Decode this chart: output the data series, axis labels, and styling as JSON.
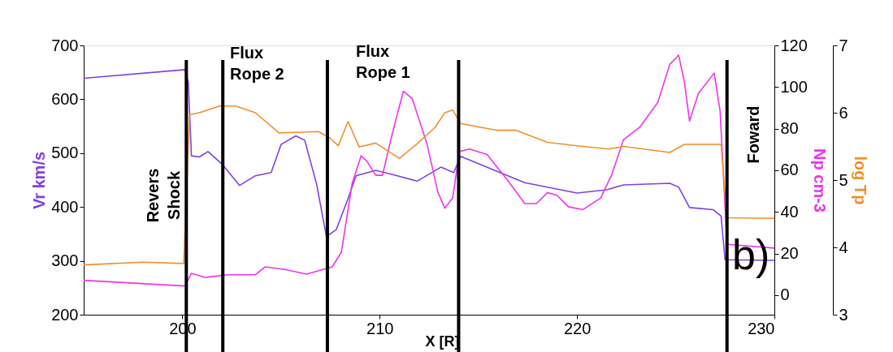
{
  "chart_data": {
    "type": "line",
    "xlabel": "X [R]",
    "ylabel": "Vr km/s",
    "y2label": "Np cm-3",
    "y3label": "log Tp",
    "xlim": [
      195,
      230
    ],
    "xticks": [
      200,
      210,
      220,
      230
    ],
    "ylim": [
      200,
      700
    ],
    "yticks": [
      200,
      300,
      400,
      500,
      600,
      700
    ],
    "y2lim": [
      -9.4,
      120
    ],
    "y2ticks": [
      0,
      20,
      40,
      60,
      80,
      100,
      120
    ],
    "y3lim": [
      3,
      7
    ],
    "y3ticks": [
      3,
      4,
      5,
      6,
      7
    ],
    "grid": false,
    "line_style": "solid",
    "marker": "none",
    "series": [
      {
        "axis": "y",
        "color": "#7f3fe6",
        "x": [
          195,
          200.14,
          200.3,
          200.46,
          200.86,
          201.3,
          202.0,
          202.9,
          203.7,
          204.5,
          205.0,
          205.75,
          206.2,
          206.8,
          207.3,
          207.8,
          208.35,
          208.8,
          209.8,
          210.9,
          211.9,
          213.1,
          213.75,
          214.1,
          215.9,
          217.35,
          220,
          221.5,
          222.35,
          224.7,
          225.15,
          225.7,
          226.9,
          227.3,
          227.5,
          230
        ],
        "values": [
          639,
          655,
          632,
          495,
          493,
          503,
          480,
          440,
          458,
          464,
          516,
          532,
          524,
          443,
          345,
          358,
          411,
          458,
          468,
          458,
          448,
          474,
          464,
          494,
          467,
          445,
          426,
          432,
          441,
          444,
          437,
          399,
          395,
          383,
          302,
          301
        ]
      },
      {
        "axis": "y2",
        "color": "#ee33ee",
        "x": [
          195,
          200.14,
          200.46,
          201.15,
          202.3,
          203.7,
          204.2,
          205.2,
          206.3,
          207.6,
          208.06,
          208.6,
          209.06,
          209.35,
          209.8,
          210.14,
          210.65,
          211.2,
          211.65,
          212.4,
          212.95,
          213.3,
          213.7,
          214.04,
          214.56,
          215.44,
          216.5,
          217.35,
          217.94,
          218.5,
          218.97,
          219.56,
          220.3,
          221.2,
          221.76,
          222.35,
          223.2,
          224.1,
          224.7,
          225.15,
          225.44,
          225.7,
          226.15,
          226.95,
          227.25,
          227.6,
          230
        ],
        "values": [
          7.1,
          4.4,
          10.5,
          8.5,
          9.8,
          9.8,
          13.6,
          12.3,
          10.1,
          13.6,
          20.7,
          53.5,
          67,
          64.4,
          57.6,
          57.6,
          78,
          98,
          94.4,
          72.6,
          49.4,
          41.8,
          46.7,
          69,
          70.2,
          67.6,
          55,
          44,
          44,
          49.2,
          48.1,
          42.5,
          41.1,
          46.7,
          57.9,
          74.6,
          80.9,
          92.7,
          110.9,
          115.3,
          102.5,
          83.7,
          96.9,
          106.7,
          88.6,
          24.4,
          22.6
        ]
      },
      {
        "axis": "y3",
        "color": "#f0902a",
        "x": [
          195,
          198,
          200.07,
          200.36,
          200.86,
          201.87,
          202.7,
          203.7,
          204.9,
          206.0,
          206.9,
          207.5,
          207.9,
          208.4,
          208.96,
          209.8,
          211.0,
          211.94,
          212.8,
          213.3,
          213.7,
          214.1,
          215.9,
          216.9,
          218.5,
          220,
          221.6,
          222.35,
          224.7,
          225.44,
          227.3,
          227.6,
          230
        ],
        "values": [
          3.74,
          3.78,
          3.76,
          5.97,
          6.0,
          6.1,
          6.1,
          6.0,
          5.7,
          5.71,
          5.72,
          5.62,
          5.51,
          5.87,
          5.49,
          5.55,
          5.32,
          5.55,
          5.78,
          6.0,
          6.04,
          5.84,
          5.74,
          5.74,
          5.56,
          5.51,
          5.46,
          5.5,
          5.41,
          5.53,
          5.53,
          4.44,
          4.43
        ]
      }
    ],
    "ref_lines": [
      {
        "axis": "x",
        "value": 200.2,
        "color": "#000000"
      },
      {
        "axis": "x",
        "value": 202.05,
        "color": "#000000"
      },
      {
        "axis": "x",
        "value": 207.35,
        "color": "#000000"
      },
      {
        "axis": "x",
        "value": 214.0,
        "color": "#000000"
      },
      {
        "axis": "x",
        "value": 227.6,
        "color": "#000000"
      }
    ],
    "annotations": [
      "Revers\nShock",
      "Flux\nRope 2",
      "Flux\nRope 1",
      "Foward",
      "b)"
    ]
  }
}
